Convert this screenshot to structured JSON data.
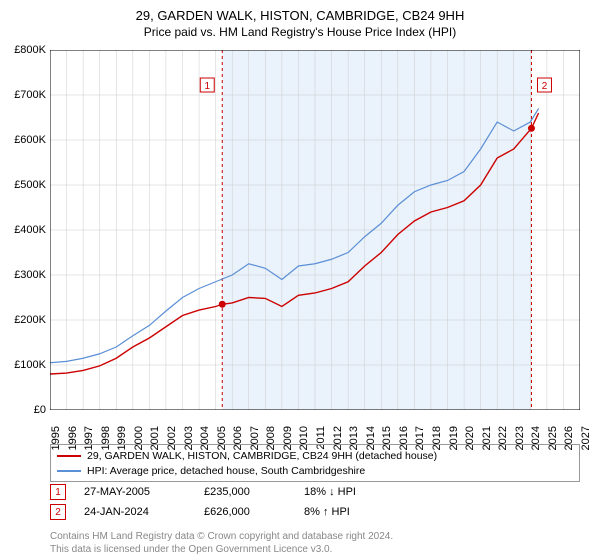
{
  "title_line1": "29, GARDEN WALK, HISTON, CAMBRIDGE, CB24 9HH",
  "title_line2": "Price paid vs. HM Land Registry's House Price Index (HPI)",
  "chart": {
    "type": "line",
    "background_color": "#ffffff",
    "shaded_band_color": "#eaf2fb",
    "shaded_band_x": [
      2005.4,
      2024.07
    ],
    "grid_color": "#cccccc",
    "axis_color": "#000000",
    "y": {
      "min": 0,
      "max": 800000,
      "step": 100000,
      "prefix": "£",
      "suffix": "K",
      "divisor": 1000
    },
    "x": {
      "min": 1995,
      "max": 2027,
      "step": 1
    },
    "series": [
      {
        "name": "price_paid",
        "label": "29, GARDEN WALK, HISTON, CAMBRIDGE, CB24 9HH (detached house)",
        "color": "#cc0000",
        "width": 1.4,
        "points": [
          [
            1995,
            80000
          ],
          [
            1996,
            82000
          ],
          [
            1997,
            88000
          ],
          [
            1998,
            98000
          ],
          [
            1999,
            115000
          ],
          [
            2000,
            140000
          ],
          [
            2001,
            160000
          ],
          [
            2002,
            185000
          ],
          [
            2003,
            210000
          ],
          [
            2004,
            222000
          ],
          [
            2005,
            230000
          ],
          [
            2005.4,
            235000
          ],
          [
            2006,
            238000
          ],
          [
            2007,
            250000
          ],
          [
            2008,
            248000
          ],
          [
            2009,
            230000
          ],
          [
            2010,
            255000
          ],
          [
            2011,
            260000
          ],
          [
            2012,
            270000
          ],
          [
            2013,
            285000
          ],
          [
            2014,
            320000
          ],
          [
            2015,
            350000
          ],
          [
            2016,
            390000
          ],
          [
            2017,
            420000
          ],
          [
            2018,
            440000
          ],
          [
            2019,
            450000
          ],
          [
            2020,
            465000
          ],
          [
            2021,
            500000
          ],
          [
            2022,
            560000
          ],
          [
            2023,
            580000
          ],
          [
            2024.07,
            626000
          ],
          [
            2024.5,
            660000
          ]
        ]
      },
      {
        "name": "hpi",
        "label": "HPI: Average price, detached house, South Cambridgeshire",
        "color": "#5b8fd6",
        "width": 1.2,
        "points": [
          [
            1995,
            105000
          ],
          [
            1996,
            108000
          ],
          [
            1997,
            115000
          ],
          [
            1998,
            125000
          ],
          [
            1999,
            140000
          ],
          [
            2000,
            165000
          ],
          [
            2001,
            188000
          ],
          [
            2002,
            220000
          ],
          [
            2003,
            250000
          ],
          [
            2004,
            270000
          ],
          [
            2005,
            285000
          ],
          [
            2006,
            300000
          ],
          [
            2007,
            325000
          ],
          [
            2008,
            315000
          ],
          [
            2009,
            290000
          ],
          [
            2010,
            320000
          ],
          [
            2011,
            325000
          ],
          [
            2012,
            335000
          ],
          [
            2013,
            350000
          ],
          [
            2014,
            385000
          ],
          [
            2015,
            415000
          ],
          [
            2016,
            455000
          ],
          [
            2017,
            485000
          ],
          [
            2018,
            500000
          ],
          [
            2019,
            510000
          ],
          [
            2020,
            530000
          ],
          [
            2021,
            580000
          ],
          [
            2022,
            640000
          ],
          [
            2023,
            620000
          ],
          [
            2024,
            640000
          ],
          [
            2024.5,
            670000
          ]
        ]
      }
    ],
    "markers": [
      {
        "n": "1",
        "x": 2005.4,
        "y": 235000,
        "date": "27-MAY-2005",
        "price": "£235,000",
        "delta": "18% ↓ HPI",
        "line_color": "#cc0000"
      },
      {
        "n": "2",
        "x": 2024.07,
        "y": 626000,
        "date": "24-JAN-2024",
        "price": "£626,000",
        "delta": "8% ↑ HPI",
        "line_color": "#cc0000"
      }
    ],
    "marker_box": {
      "border_color": "#cc0000",
      "text_color": "#cc0000",
      "bg": "#ffffff"
    },
    "legend_border": "#999999",
    "font_size_axis": 11,
    "font_size_legend": 10.5
  },
  "footer_line1": "Contains HM Land Registry data © Crown copyright and database right 2024.",
  "footer_line2": "This data is licensed under the Open Government Licence v3.0."
}
